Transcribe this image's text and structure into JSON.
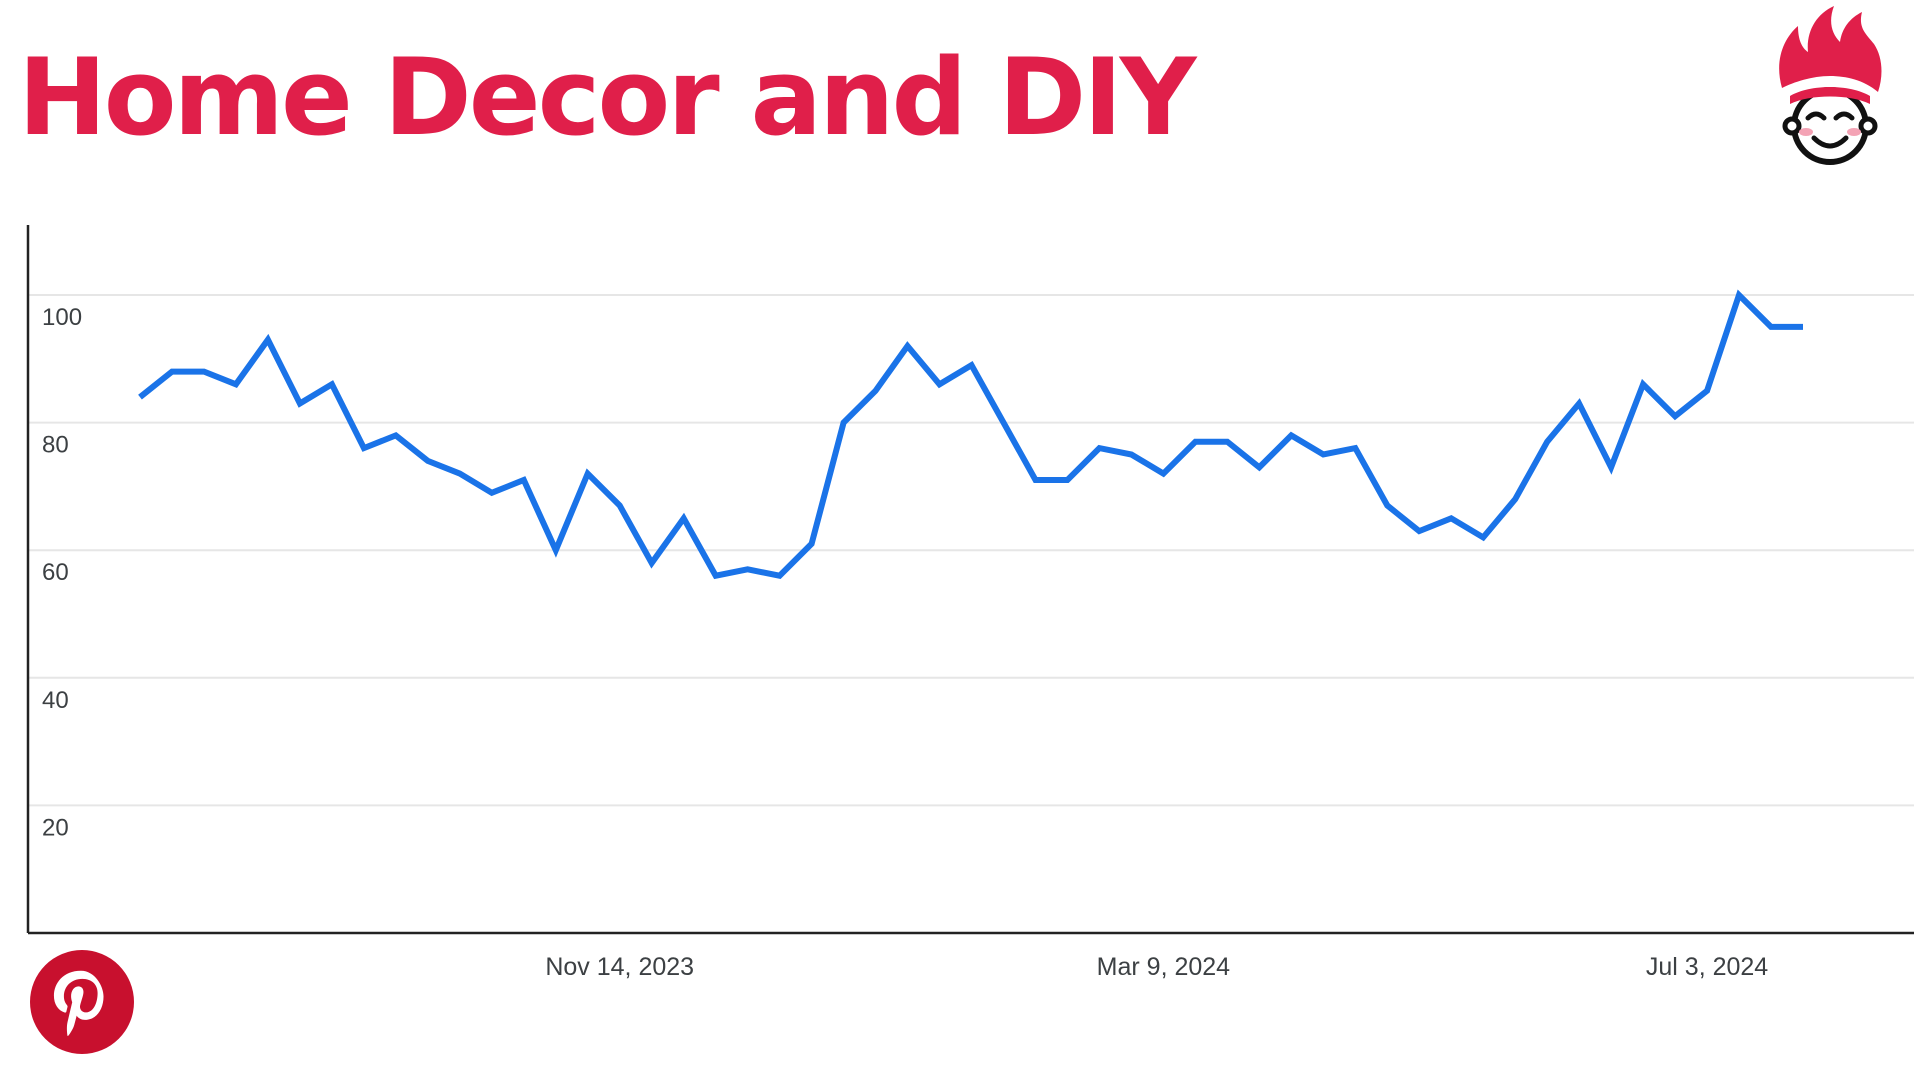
{
  "header": {
    "title": "Home Decor and DIY"
  },
  "logos": {
    "brand": "flame-hair-face-logo",
    "platform": "pinterest-logo"
  },
  "colors": {
    "title": "#e01f4a",
    "line": "#1a73e8",
    "axis": "#3c4043",
    "grid": "#e6e6e6",
    "pinterest": "#c8102e"
  },
  "chart_data": {
    "type": "line",
    "title": "Home Decor and DIY",
    "xlabel": "",
    "ylabel": "",
    "x_ticks": [
      "Nov 14, 2023",
      "Mar 9, 2024",
      "Jul 3, 2024"
    ],
    "y_ticks": [
      20,
      40,
      60,
      80,
      100
    ],
    "ylim": [
      0,
      111
    ],
    "grid": true,
    "legend": "none",
    "series": [
      {
        "values": [
          84,
          88,
          88,
          86,
          93,
          83,
          86,
          76,
          78,
          74,
          72,
          69,
          71,
          60,
          72,
          67,
          58,
          65,
          56,
          57,
          56,
          61,
          80,
          85,
          92,
          86,
          89,
          80,
          71,
          71,
          76,
          75,
          72,
          77,
          77,
          73,
          78,
          75,
          76,
          67,
          63,
          65,
          62,
          68,
          77,
          83,
          73,
          86,
          81,
          85,
          100,
          95,
          95
        ]
      }
    ]
  }
}
